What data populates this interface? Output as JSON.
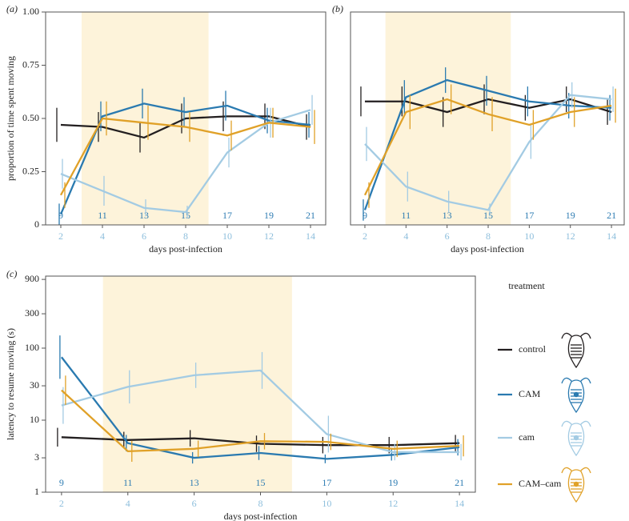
{
  "chart_data": [
    {
      "type": "line",
      "panel_label": "(a)",
      "ylabel": "proportion of time spent moving",
      "xlabel": "days post-infection",
      "x": [
        2,
        4,
        6,
        8,
        10,
        12,
        14
      ],
      "xticks": [
        2,
        4,
        6,
        8,
        10,
        12,
        14
      ],
      "x2ticks": [
        9,
        11,
        13,
        15,
        17,
        19,
        21
      ],
      "xlim": [
        1.27,
        14.73
      ],
      "ylim": [
        0,
        1
      ],
      "yticks": [
        0,
        0.25,
        {
          "value": 0.5,
          "label": "0.50"
        },
        0.75,
        {
          "value": 1,
          "label": "1.00"
        }
      ],
      "shade": [
        3,
        9.1
      ],
      "shade_color": "#fdf3da",
      "series": [
        {
          "name": "control",
          "color": "#231f20",
          "values": [
            0.47,
            0.46,
            0.41,
            0.5,
            0.51,
            0.51,
            0.46
          ],
          "errors": [
            0.08,
            0.07,
            0.07,
            0.07,
            0.07,
            0.06,
            0.06
          ]
        },
        {
          "name": "CAM",
          "color": "#2a7ab0",
          "values": [
            0.05,
            0.51,
            0.57,
            0.53,
            0.56,
            0.49,
            0.47
          ],
          "errors": [
            0.05,
            0.07,
            0.07,
            0.07,
            0.07,
            0.06,
            0.06
          ]
        },
        {
          "name": "cam",
          "color": "#a3cbe3",
          "values": [
            0.24,
            0.16,
            0.08,
            0.06,
            0.34,
            0.48,
            0.54
          ],
          "errors": [
            0.07,
            0.07,
            0.04,
            0.03,
            0.07,
            0.07,
            0.07
          ]
        },
        {
          "name": "CAM–cam",
          "color": "#e0a128",
          "values": [
            0.14,
            0.5,
            0.48,
            0.46,
            0.42,
            0.48,
            0.46
          ],
          "errors": [
            0.06,
            0.08,
            0.08,
            0.07,
            0.07,
            0.07,
            0.08
          ]
        }
      ]
    },
    {
      "type": "line",
      "panel_label": "(b)",
      "xlabel": "days post-infection",
      "x": [
        2,
        4,
        6,
        8,
        10,
        12,
        14
      ],
      "xticks": [
        2,
        4,
        6,
        8,
        10,
        12,
        14
      ],
      "x2ticks": [
        9,
        11,
        13,
        15,
        17,
        19,
        21
      ],
      "xlim": [
        1.3,
        14.62
      ],
      "ylim": [
        0,
        1
      ],
      "shade": [
        3,
        9.1
      ],
      "shade_color": "#fdf3da",
      "series": [
        {
          "name": "control",
          "color": "#231f20",
          "values": [
            0.58,
            0.58,
            0.53,
            0.59,
            0.55,
            0.59,
            0.53
          ],
          "errors": [
            0.07,
            0.07,
            0.07,
            0.07,
            0.06,
            0.06,
            0.06
          ]
        },
        {
          "name": "CAM",
          "color": "#2a7ab0",
          "values": [
            0.07,
            0.6,
            0.68,
            0.63,
            0.58,
            0.56,
            0.55
          ],
          "errors": [
            0.05,
            0.08,
            0.06,
            0.07,
            0.07,
            0.06,
            0.06
          ]
        },
        {
          "name": "cam",
          "color": "#a3cbe3",
          "values": [
            0.38,
            0.18,
            0.11,
            0.07,
            0.39,
            0.61,
            0.59
          ],
          "errors": [
            0.08,
            0.07,
            0.05,
            0.03,
            0.08,
            0.06,
            0.06
          ]
        },
        {
          "name": "CAM–cam",
          "color": "#e0a128",
          "values": [
            0.14,
            0.53,
            0.59,
            0.52,
            0.47,
            0.53,
            0.56
          ],
          "errors": [
            0.06,
            0.08,
            0.07,
            0.08,
            0.07,
            0.07,
            0.08
          ]
        }
      ]
    },
    {
      "type": "line",
      "panel_label": "(c)",
      "ylabel": "latency to resume moving (s)",
      "xlabel": "days post-infection",
      "x": [
        2,
        4,
        6,
        8,
        10,
        12,
        14
      ],
      "xticks": [
        2,
        4,
        6,
        8,
        10,
        12,
        14
      ],
      "x2ticks": [
        9,
        11,
        13,
        15,
        17,
        19,
        21
      ],
      "xlim": [
        1.52,
        14.48
      ],
      "ylim": [
        1,
        1000
      ],
      "log_y": true,
      "yticks": [
        1,
        3,
        10,
        30,
        100,
        300,
        900
      ],
      "shade": [
        3.25,
        8.95
      ],
      "shade_color": "#fdf3da",
      "legend_title": "treatment",
      "series": [
        {
          "name": "control",
          "color": "#231f20",
          "values": [
            5.8,
            5.3,
            5.6,
            4.7,
            4.5,
            4.5,
            4.8
          ],
          "errors": [
            1.35,
            1.3,
            1.3,
            1.3,
            1.3,
            1.3,
            1.3
          ]
        },
        {
          "name": "CAM",
          "color": "#2a7ab0",
          "values": [
            75,
            4.8,
            3.0,
            3.5,
            2.9,
            3.3,
            4.2
          ],
          "errors": [
            2.0,
            1.3,
            1.2,
            1.25,
            1.15,
            1.2,
            1.3
          ]
        },
        {
          "name": "cam",
          "color": "#a3cbe3",
          "values": [
            16,
            29,
            42,
            49,
            6.4,
            3.6,
            3.6
          ],
          "errors": [
            1.8,
            1.7,
            1.5,
            1.8,
            1.8,
            1.3,
            1.3
          ]
        },
        {
          "name": "CAM–cam",
          "color": "#e0a128",
          "values": [
            26,
            3.7,
            4.0,
            5.1,
            5.0,
            4.0,
            4.4
          ],
          "errors": [
            1.6,
            1.4,
            1.3,
            1.3,
            1.3,
            1.3,
            1.4
          ]
        }
      ]
    }
  ]
}
